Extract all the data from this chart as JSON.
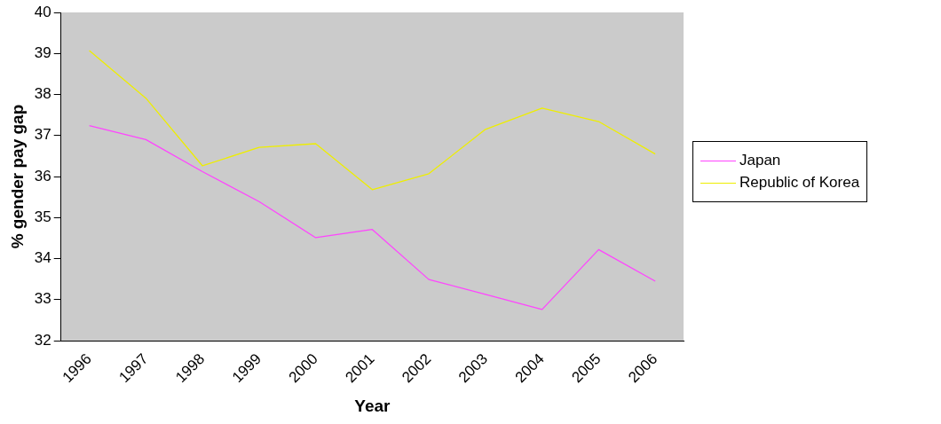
{
  "chart_data": {
    "type": "line",
    "xlabel": "Year",
    "ylabel": "% gender pay gap",
    "categories": [
      "1996",
      "1997",
      "1998",
      "1999",
      "2000",
      "2001",
      "2002",
      "2003",
      "2004",
      "2005",
      "2006"
    ],
    "series": [
      {
        "name": "Japan",
        "color": "#ff44ff",
        "values": [
          37.24,
          36.9,
          36.12,
          35.39,
          34.51,
          34.71,
          33.49,
          33.13,
          32.76,
          34.22,
          33.45
        ]
      },
      {
        "name": "Republic of Korea",
        "color": "#eeee00",
        "values": [
          39.07,
          37.91,
          36.26,
          36.71,
          36.8,
          35.68,
          36.07,
          37.15,
          37.67,
          37.34,
          36.55
        ]
      }
    ],
    "ylim": [
      32,
      40
    ],
    "yticks": [
      32,
      33,
      34,
      35,
      36,
      37,
      38,
      39,
      40
    ],
    "grid": false,
    "legend": "right",
    "marker": "none",
    "line_style": "solid"
  }
}
